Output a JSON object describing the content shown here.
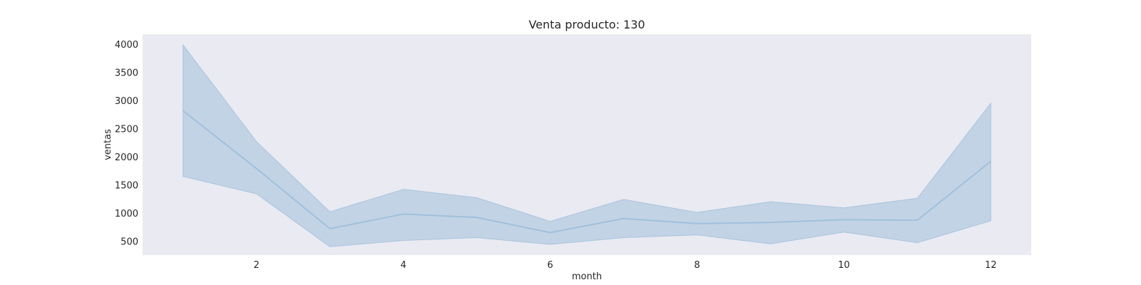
{
  "chart_data": {
    "type": "line",
    "title": "Venta producto: 130",
    "xlabel": "month",
    "ylabel": "ventas",
    "xlim": [
      0.45,
      12.55
    ],
    "ylim": [
      250,
      4180
    ],
    "xticks": [
      2,
      4,
      6,
      8,
      10,
      12
    ],
    "yticks": [
      500,
      1000,
      1500,
      2000,
      2500,
      3000,
      3500,
      4000
    ],
    "grid": false,
    "legend": "none",
    "colors": {
      "plot_bg": "#eaeaf2",
      "line": "#9ebfdc",
      "band": "#c2d3e5",
      "band_edge": "#a9c4de"
    },
    "x": [
      1,
      2,
      3,
      4,
      5,
      6,
      7,
      8,
      9,
      10,
      11,
      12
    ],
    "series": [
      {
        "values": [
          2820,
          1790,
          720,
          980,
          920,
          650,
          900,
          810,
          830,
          880,
          870,
          1920
        ],
        "lower": [
          1650,
          1340,
          400,
          510,
          560,
          440,
          560,
          610,
          450,
          660,
          470,
          860
        ],
        "upper": [
          3990,
          2270,
          1020,
          1420,
          1270,
          850,
          1240,
          1010,
          1200,
          1090,
          1260,
          2950
        ]
      }
    ]
  }
}
